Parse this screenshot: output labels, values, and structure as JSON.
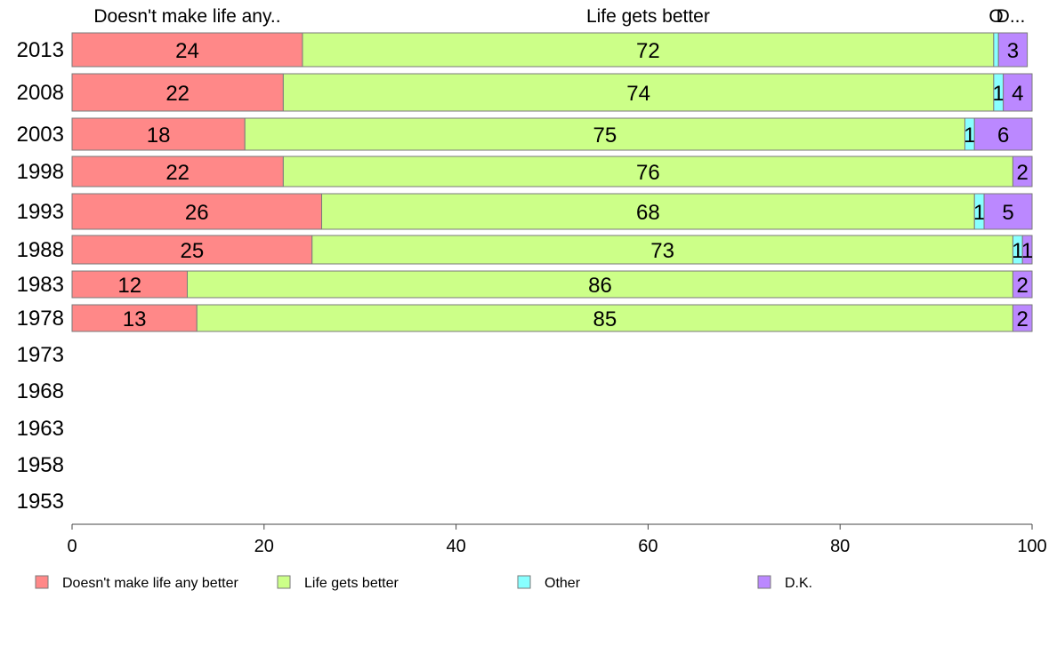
{
  "chart_data": {
    "type": "bar",
    "orientation": "horizontal",
    "stacked": true,
    "categories": [
      "2013",
      "2008",
      "2003",
      "1998",
      "1993",
      "1988",
      "1983",
      "1978",
      "1973",
      "1968",
      "1963",
      "1958",
      "1953"
    ],
    "series": [
      {
        "name": "Doesn't make life any better",
        "color": "#ff8888",
        "values": [
          24,
          22,
          18,
          22,
          26,
          25,
          12,
          13,
          null,
          null,
          null,
          null,
          null
        ]
      },
      {
        "name": "Life gets better",
        "color": "#ccff88",
        "values": [
          72,
          74,
          75,
          76,
          68,
          73,
          86,
          85,
          null,
          null,
          null,
          null,
          null
        ]
      },
      {
        "name": "Other",
        "color": "#88ffff",
        "values": [
          0.5,
          1,
          1,
          0,
          1,
          1,
          0,
          0,
          null,
          null,
          null,
          null,
          null
        ]
      },
      {
        "name": "D.K.",
        "color": "#bb88ff",
        "values": [
          3,
          4,
          6,
          2,
          5,
          1,
          2,
          2,
          null,
          null,
          null,
          null,
          null
        ]
      }
    ],
    "value_labels": [
      [
        "24",
        "72",
        "",
        "3"
      ],
      [
        "22",
        "74",
        "1",
        "4"
      ],
      [
        "18",
        "75",
        "1",
        "6"
      ],
      [
        "22",
        "76",
        "",
        "2"
      ],
      [
        "26",
        "68",
        "1",
        "5"
      ],
      [
        "25",
        "73",
        "1",
        "1"
      ],
      [
        "12",
        "86",
        "",
        "2"
      ],
      [
        "13",
        "85",
        "",
        "2"
      ],
      [
        "",
        "",
        "",
        ""
      ],
      [
        "",
        "",
        "",
        ""
      ],
      [
        "",
        "",
        "",
        ""
      ],
      [
        "",
        "",
        "",
        ""
      ],
      [
        "",
        "",
        "",
        ""
      ]
    ],
    "segment_headers": [
      "Doesn't make life any..",
      "Life gets better",
      "O",
      "D..."
    ],
    "xlim": [
      0,
      100
    ],
    "xticks": [
      "0",
      "20",
      "40",
      "60",
      "80",
      "100"
    ],
    "grid": false,
    "legend_position": "bottom",
    "title": "",
    "xlabel": "",
    "ylabel": ""
  }
}
